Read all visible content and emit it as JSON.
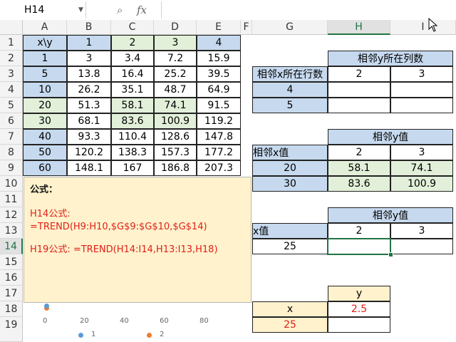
{
  "formula_bar": {
    "name_box": "H14",
    "name_dropdown_icon": "chevron-down-icon",
    "zoom_icon": "zoom-icon",
    "fx_label": "fx",
    "formula": ""
  },
  "columns": [
    "A",
    "B",
    "C",
    "D",
    "E",
    "F",
    "G",
    "H",
    "I"
  ],
  "rows": [
    "1",
    "2",
    "3",
    "4",
    "5",
    "6",
    "7",
    "8",
    "9",
    "10",
    "11",
    "12",
    "13",
    "14",
    "15",
    "16",
    "17",
    "18",
    "19"
  ],
  "selected_cell": "H14",
  "data_table": {
    "header": [
      "x\\y",
      "1",
      "2",
      "3",
      "4"
    ],
    "rows": [
      [
        "1",
        "3",
        "3.4",
        "7.2",
        "15.9"
      ],
      [
        "5",
        "13.8",
        "16.4",
        "25.2",
        "39.5"
      ],
      [
        "10",
        "26.2",
        "35.1",
        "48.7",
        "64.9"
      ],
      [
        "20",
        "51.3",
        "58.1",
        "74.1",
        "91.5"
      ],
      [
        "30",
        "68.1",
        "83.6",
        "100.9",
        "119.2"
      ],
      [
        "40",
        "93.3",
        "110.4",
        "128.6",
        "147.8"
      ],
      [
        "50",
        "120.2",
        "138.3",
        "157.3",
        "177.2"
      ],
      [
        "60",
        "148.1",
        "167",
        "186.8",
        "207.3"
      ]
    ]
  },
  "right_tables": {
    "t1_title": "相邻y所在列数",
    "t1_label": "相邻x所在行数",
    "t1_h1": "2",
    "t1_h2": "3",
    "t1_r1": "4",
    "t1_r2": "5",
    "t2_title": "相邻y值",
    "t2_label": "相邻x值",
    "t2_h1": "2",
    "t2_h2": "3",
    "t2_r1": [
      "20",
      "58.1",
      "74.1"
    ],
    "t2_r2": [
      "30",
      "83.6",
      "100.9"
    ],
    "t3_title": "相邻y值",
    "t3_label": "x值",
    "t3_h1": "2",
    "t3_h2": "3",
    "t3_x": "25",
    "t4_y": "y",
    "t4_x": "x",
    "t4_yval": "2.5",
    "t4_xval": "25"
  },
  "note": {
    "title": "公式：",
    "line1": "H14公式:",
    "line2": "=TREND(H9:H10,$G$9:$G$10,$G$14)",
    "line3": "H19公式:  =TREND(H14:I14,H13:I13,H18)"
  },
  "chart": {
    "x_ticks": [
      "0",
      "20",
      "40",
      "60",
      "80"
    ],
    "legend": [
      "1",
      "2"
    ],
    "colors": {
      "series1": "#5b9bd5",
      "series2": "#ed7d31"
    }
  },
  "colors": {
    "blue_fill": "#c6d9ee",
    "green_fill": "#e2efd9",
    "yellow_fill": "#fff2cc",
    "accent": "#217346",
    "red_text": "#e0201a"
  }
}
